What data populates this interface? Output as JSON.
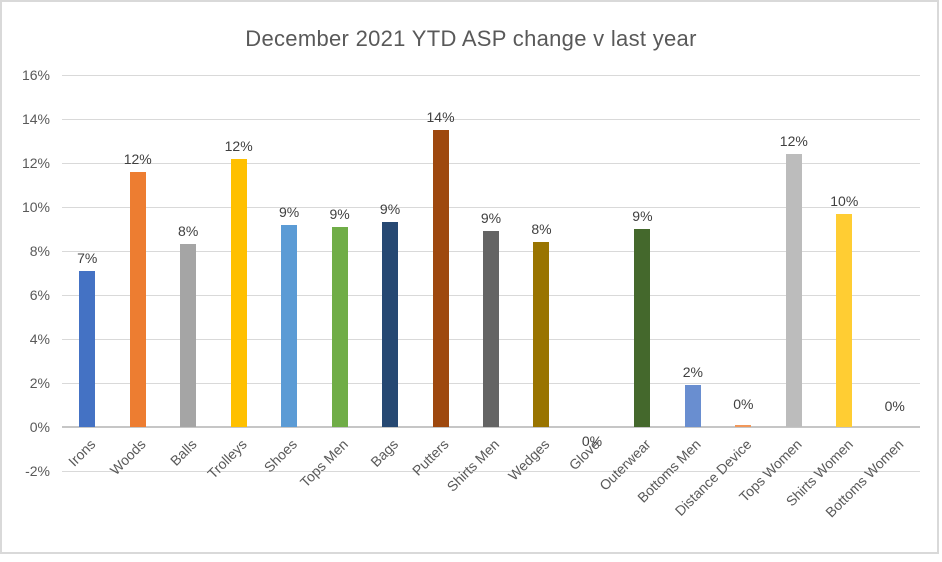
{
  "chart_data": {
    "type": "bar",
    "title": "December 2021 YTD ASP change v last year",
    "categories": [
      "Irons",
      "Woods",
      "Balls",
      "Trolleys",
      "Shoes",
      "Tops Men",
      "Bags",
      "Putters",
      "Shirts Men",
      "Wedges",
      "Glove",
      "Outerwear",
      "Bottoms Men",
      "Distance Device",
      "Tops Women",
      "Shirts Women",
      "Bottoms Women"
    ],
    "values": [
      7.1,
      11.6,
      8.3,
      12.2,
      9.2,
      9.1,
      9.3,
      13.5,
      8.9,
      8.4,
      0,
      9.0,
      1.9,
      0.1,
      12.4,
      9.7,
      0
    ],
    "data_labels": [
      "7%",
      "12%",
      "8%",
      "12%",
      "9%",
      "9%",
      "9%",
      "14%",
      "9%",
      "8%",
      "0%",
      "9%",
      "2%",
      "0%",
      "12%",
      "10%",
      "0%"
    ],
    "bar_colors": [
      "#4472C4",
      "#ED7D31",
      "#A5A5A5",
      "#FFC000",
      "#5B9BD5",
      "#70AD47",
      "#264872",
      "#9E480E",
      "#646464",
      "#997400",
      "#255E91",
      "#44682C",
      "#698ED0",
      "#F1975A",
      "#BCBCBC",
      "#FFCD33",
      "#8FAADC"
    ],
    "yticks": [
      "16%",
      "14%",
      "12%",
      "10%",
      "8%",
      "6%",
      "4%",
      "2%",
      "0%",
      "-2%"
    ],
    "ylim": [
      -2,
      16
    ],
    "y_tick_step": 2,
    "grid": true,
    "legend": false,
    "xlabel": "",
    "ylabel": "",
    "below_axis_labels": [
      "Glove"
    ]
  },
  "style": {
    "title_color": "#595959",
    "axis_text_color": "#595959",
    "data_label_color": "#404040",
    "gridline_color": "#D9D9D9",
    "axis_line_color": "#C6C6C6",
    "frame_color": "#D9D9D9",
    "background": "#FFFFFF"
  }
}
